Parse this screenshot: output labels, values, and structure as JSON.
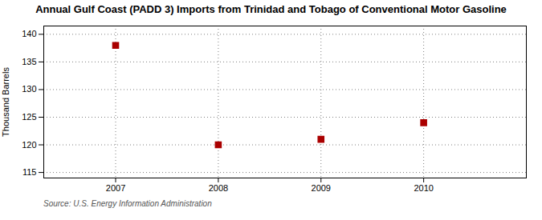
{
  "chart_data": {
    "type": "scatter",
    "title": "Annual Gulf Coast (PADD 3) Imports from Trinidad and Tobago of Conventional Motor Gasoline",
    "ylabel": "Thousand Barrels",
    "source": "Source: U.S. Energy Information Administration",
    "x": [
      2007,
      2008,
      2009,
      2010
    ],
    "values": [
      138,
      120,
      121,
      124
    ],
    "color": "#aa0000",
    "marker": "square",
    "xlim": [
      2006.3,
      2011.0
    ],
    "ylim": [
      114,
      141.5
    ],
    "xticks": [
      2007,
      2008,
      2009,
      2010
    ],
    "yticks": [
      115,
      120,
      125,
      130,
      135,
      140
    ],
    "grid": true
  }
}
